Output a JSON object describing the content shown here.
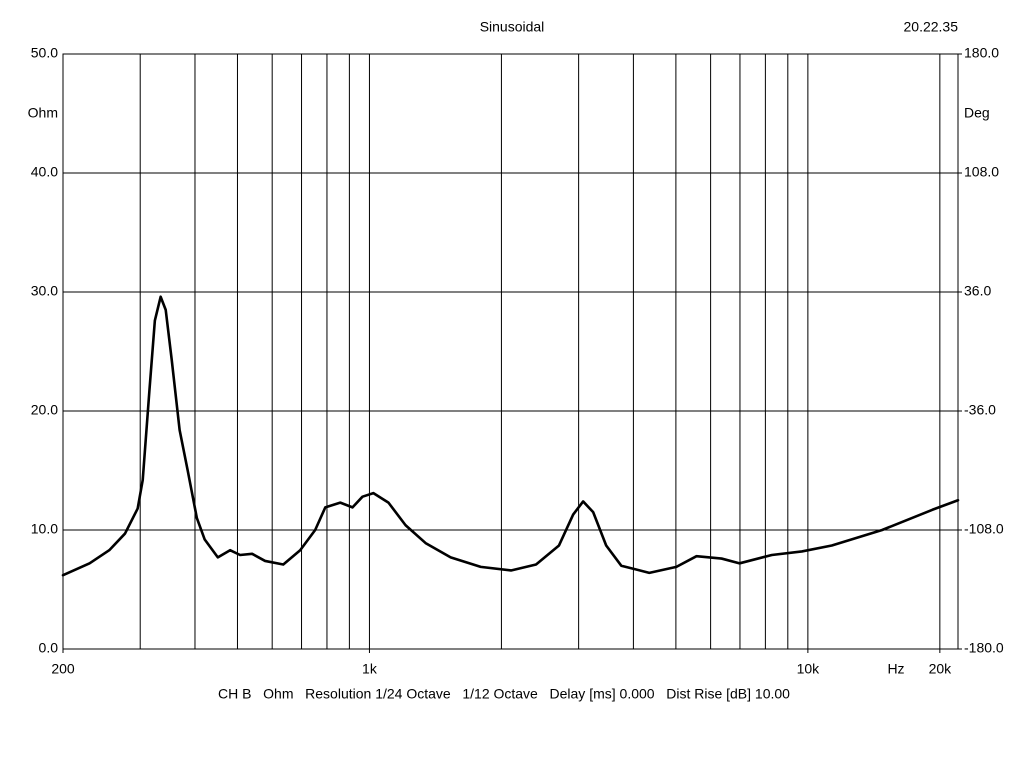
{
  "chart_data": {
    "type": "line",
    "title": "Sinusoidal",
    "timestamp": "20.22.35",
    "y_label": "Ohm",
    "y2_label": "Deg",
    "x_unit_label": "Hz",
    "footer": "CH B   Ohm   Resolution 1/24 Octave   1/12 Octave   Delay [ms] 0.000   Dist Rise [dB] 10.00",
    "x_scale": "log",
    "xlim": [
      200,
      22000
    ],
    "xticks": [
      200,
      {
        "value": 1000,
        "label": "1k"
      },
      {
        "value": 10000,
        "label": "10k"
      },
      {
        "value": 20000,
        "label": "20k"
      }
    ],
    "x_gridlines": [
      300,
      400,
      500,
      600,
      700,
      800,
      900,
      1000,
      2000,
      3000,
      4000,
      5000,
      6000,
      7000,
      8000,
      9000,
      10000,
      20000
    ],
    "ylim": [
      0,
      50
    ],
    "yticks": [
      {
        "value": 0,
        "label": "0.0"
      },
      {
        "value": 10,
        "label": "10.0"
      },
      {
        "value": 20,
        "label": "20.0"
      },
      {
        "value": 30,
        "label": "30.0"
      },
      {
        "value": 40,
        "label": "40.0"
      },
      {
        "value": 50,
        "label": "50.0"
      }
    ],
    "y2lim": [
      -180,
      180
    ],
    "y2ticks": [
      {
        "value": -180,
        "label": "-180.0"
      },
      {
        "value": -108,
        "label": "-108.0"
      },
      {
        "value": -36,
        "label": "-36.0"
      },
      {
        "value": 36,
        "label": "36.0"
      },
      {
        "value": 108,
        "label": "108.0"
      },
      {
        "value": 180,
        "label": "180.0"
      }
    ],
    "grid": true,
    "color": "#000000",
    "x": [
      200,
      230,
      255,
      277,
      296,
      304,
      315,
      324,
      334,
      343,
      354,
      369,
      385,
      404,
      421,
      451,
      481,
      507,
      540,
      578,
      636,
      695,
      752,
      793,
      858,
      915,
      964,
      1021,
      1105,
      1209,
      1343,
      1532,
      1794,
      2103,
      2399,
      2706,
      2915,
      3072,
      3238,
      3467,
      3753,
      4348,
      5012,
      5572,
      6357,
      6988,
      8274,
      9690,
      11340,
      14770,
      19230,
      22000
    ],
    "values": [
      6.2,
      7.2,
      8.3,
      9.7,
      11.8,
      14.2,
      21.8,
      27.6,
      29.6,
      28.5,
      24.3,
      18.4,
      15.0,
      11.0,
      9.2,
      7.7,
      8.3,
      7.9,
      8.0,
      7.4,
      7.1,
      8.3,
      10.0,
      11.9,
      12.3,
      11.9,
      12.8,
      13.1,
      12.3,
      10.4,
      8.9,
      7.7,
      6.9,
      6.6,
      7.1,
      8.7,
      11.3,
      12.4,
      11.5,
      8.7,
      7.0,
      6.4,
      6.9,
      7.8,
      7.6,
      7.2,
      7.9,
      8.2,
      8.7,
      10.0,
      11.7,
      12.5
    ]
  }
}
